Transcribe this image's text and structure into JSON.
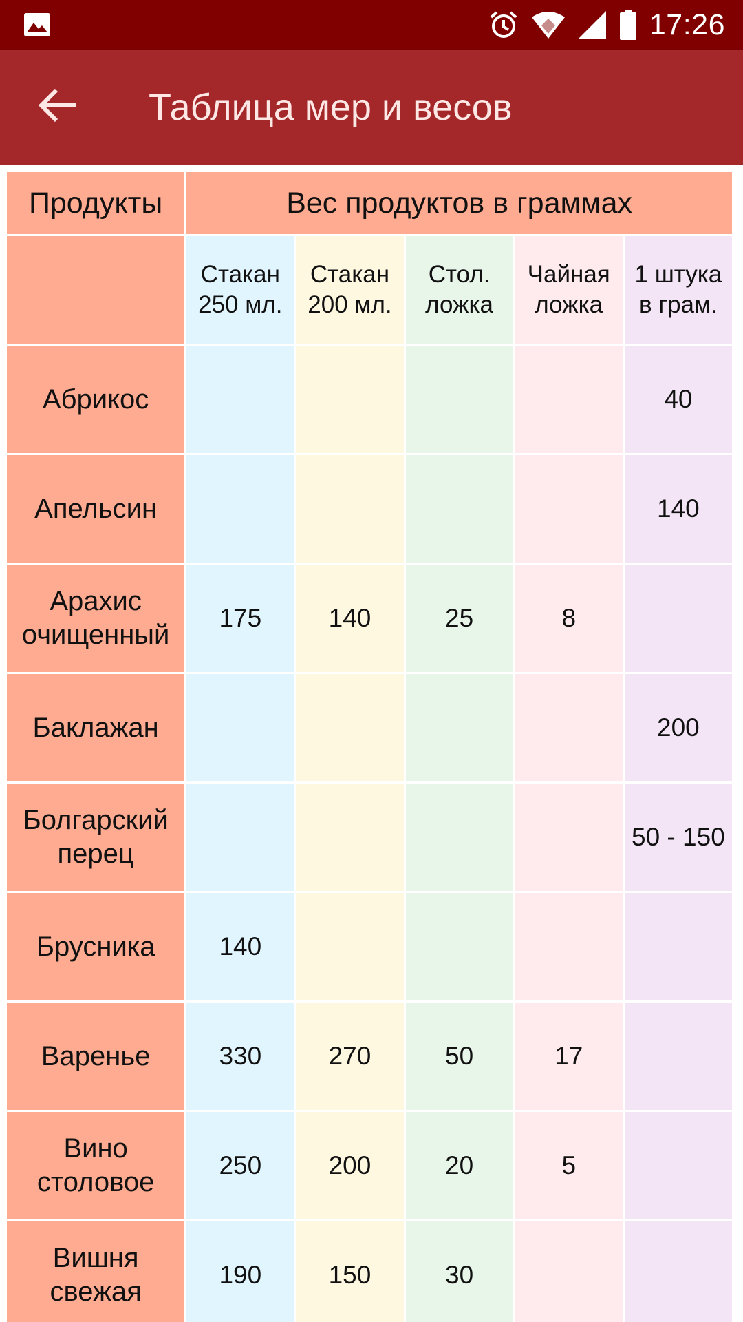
{
  "status_bar": {
    "time": "17:26",
    "icons": [
      "image-icon",
      "alarm-icon",
      "wifi-icon",
      "signal-icon",
      "battery-icon"
    ]
  },
  "app_bar": {
    "title": "Таблица мер и весов",
    "back_icon": "arrow-back-icon"
  },
  "table": {
    "header_product": "Продукты",
    "header_weight": "Вес продуктов в граммах",
    "columns": [
      {
        "line1": "Стакан",
        "line2": "250 мл."
      },
      {
        "line1": "Стакан",
        "line2": "200 мл."
      },
      {
        "line1": "Стол.",
        "line2": "ложка"
      },
      {
        "line1": "Чайная",
        "line2": "ложка"
      },
      {
        "line1": "1 штука",
        "line2": "в грам."
      }
    ],
    "rows": [
      {
        "line1": "Абрикос",
        "line2": "",
        "values": [
          "",
          "",
          "",
          "",
          "40"
        ]
      },
      {
        "line1": "Апельсин",
        "line2": "",
        "values": [
          "",
          "",
          "",
          "",
          "140"
        ]
      },
      {
        "line1": "Арахис",
        "line2": "очищенный",
        "values": [
          "175",
          "140",
          "25",
          "8",
          ""
        ]
      },
      {
        "line1": "Баклажан",
        "line2": "",
        "values": [
          "",
          "",
          "",
          "",
          "200"
        ]
      },
      {
        "line1": "Болгарский",
        "line2": "перец",
        "values": [
          "",
          "",
          "",
          "",
          "50 - 150"
        ]
      },
      {
        "line1": "Брусника",
        "line2": "",
        "values": [
          "140",
          "",
          "",
          "",
          ""
        ]
      },
      {
        "line1": "Варенье",
        "line2": "",
        "values": [
          "330",
          "270",
          "50",
          "17",
          ""
        ]
      },
      {
        "line1": "Вино",
        "line2": "столовое",
        "values": [
          "250",
          "200",
          "20",
          "5",
          ""
        ]
      },
      {
        "line1": "Вишня",
        "line2": "свежая",
        "values": [
          "190",
          "150",
          "30",
          "",
          ""
        ]
      }
    ]
  },
  "colors": {
    "status_bar": "#800000",
    "app_bar": "#a4282a",
    "product_cell": "#ffab91",
    "col_250": "#e1f5fe",
    "col_200": "#fff8e1",
    "col_tbsp": "#e8f5e9",
    "col_tsp": "#ffebee",
    "col_piece": "#f3e5f5"
  }
}
